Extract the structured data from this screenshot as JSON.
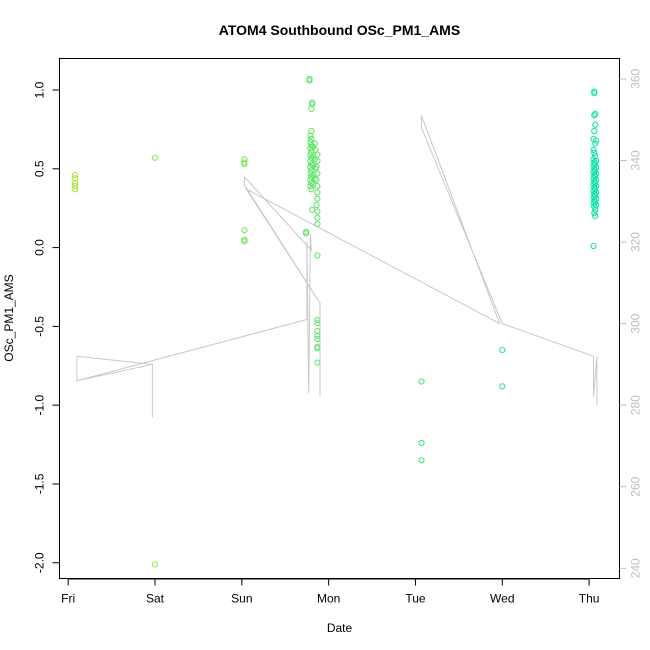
{
  "chart_data": {
    "type": "scatter",
    "title": "ATOM4 Southbound OSc_PM1_AMS",
    "xlabel": "Date",
    "ylabel": "OSc_PM1_AMS",
    "x_ticks": [
      "Fri",
      "Sat",
      "Sun",
      "Mon",
      "Tue",
      "Wed",
      "Thu"
    ],
    "xlim": [
      -0.1,
      6.35
    ],
    "ylim": [
      -2.1,
      1.2
    ],
    "y_ticks": [
      -2.0,
      -1.5,
      -1.0,
      -0.5,
      0.0,
      0.5,
      1.0
    ],
    "y2lim": [
      237.5,
      365
    ],
    "y2_ticks": [
      240,
      260,
      280,
      300,
      320,
      340,
      360
    ],
    "grid": false,
    "colors": {
      "points_start": "#a6e62c",
      "points_end": "#00e6a6",
      "line": "#c8c8c8",
      "frame": "#000000",
      "right_axis": "#bdbdbd"
    },
    "series": [
      {
        "type": "scatter",
        "axis": "left",
        "x_units": "days since Fri",
        "points": [
          [
            0.08,
            0.46
          ],
          [
            0.08,
            0.44
          ],
          [
            0.08,
            0.41
          ],
          [
            0.08,
            0.39
          ],
          [
            0.08,
            0.37
          ],
          [
            1.0,
            0.57
          ],
          [
            1.0,
            -2.01
          ],
          [
            2.03,
            0.56
          ],
          [
            2.03,
            0.54
          ],
          [
            2.03,
            0.53
          ],
          [
            2.03,
            0.11
          ],
          [
            2.03,
            0.05
          ],
          [
            2.03,
            0.04
          ],
          [
            2.74,
            0.1
          ],
          [
            2.74,
            0.09
          ],
          [
            2.78,
            1.07
          ],
          [
            2.78,
            1.06
          ],
          [
            2.81,
            0.92
          ],
          [
            2.81,
            0.91
          ],
          [
            2.8,
            0.88
          ],
          [
            2.8,
            0.74
          ],
          [
            2.79,
            0.71
          ],
          [
            2.8,
            0.69
          ],
          [
            2.79,
            0.67
          ],
          [
            2.8,
            0.65
          ],
          [
            2.79,
            0.63
          ],
          [
            2.8,
            0.61
          ],
          [
            2.79,
            0.59
          ],
          [
            2.8,
            0.57
          ],
          [
            2.79,
            0.55
          ],
          [
            2.8,
            0.53
          ],
          [
            2.79,
            0.51
          ],
          [
            2.8,
            0.49
          ],
          [
            2.79,
            0.47
          ],
          [
            2.8,
            0.45
          ],
          [
            2.79,
            0.43
          ],
          [
            2.8,
            0.41
          ],
          [
            2.79,
            0.39
          ],
          [
            2.8,
            0.37
          ],
          [
            2.82,
            0.64
          ],
          [
            2.82,
            0.58
          ],
          [
            2.82,
            0.52
          ],
          [
            2.82,
            0.46
          ],
          [
            2.82,
            0.4
          ],
          [
            2.81,
            0.24
          ],
          [
            2.84,
            0.66
          ],
          [
            2.85,
            0.62
          ],
          [
            2.84,
            0.56
          ],
          [
            2.85,
            0.5
          ],
          [
            2.84,
            0.44
          ],
          [
            2.87,
            0.59
          ],
          [
            2.87,
            0.55
          ],
          [
            2.86,
            0.51
          ],
          [
            2.87,
            0.47
          ],
          [
            2.86,
            0.43
          ],
          [
            2.87,
            0.39
          ],
          [
            2.87,
            0.35
          ],
          [
            2.87,
            0.31
          ],
          [
            2.86,
            0.27
          ],
          [
            2.87,
            0.23
          ],
          [
            2.87,
            0.19
          ],
          [
            2.87,
            0.15
          ],
          [
            2.87,
            -0.05
          ],
          [
            2.87,
            -0.46
          ],
          [
            2.87,
            -0.48
          ],
          [
            2.87,
            -0.53
          ],
          [
            2.87,
            -0.56
          ],
          [
            2.87,
            -0.58
          ],
          [
            2.87,
            -0.63
          ],
          [
            2.87,
            -0.64
          ],
          [
            2.87,
            -0.73
          ],
          [
            4.07,
            -0.85
          ],
          [
            4.07,
            -1.24
          ],
          [
            4.07,
            -1.35
          ],
          [
            5.0,
            -0.65
          ],
          [
            5.0,
            -0.88
          ],
          [
            6.06,
            0.99
          ],
          [
            6.06,
            0.98
          ],
          [
            6.07,
            0.85
          ],
          [
            6.06,
            0.84
          ],
          [
            6.07,
            0.78
          ],
          [
            6.06,
            0.74
          ],
          [
            6.05,
            0.69
          ],
          [
            6.08,
            0.68
          ],
          [
            6.07,
            0.66
          ],
          [
            6.05,
            0.62
          ],
          [
            6.06,
            0.6
          ],
          [
            6.07,
            0.58
          ],
          [
            6.05,
            0.56
          ],
          [
            6.08,
            0.55
          ],
          [
            6.06,
            0.54
          ],
          [
            6.07,
            0.53
          ],
          [
            6.05,
            0.52
          ],
          [
            6.08,
            0.51
          ],
          [
            6.06,
            0.5
          ],
          [
            6.07,
            0.49
          ],
          [
            6.05,
            0.48
          ],
          [
            6.08,
            0.47
          ],
          [
            6.06,
            0.46
          ],
          [
            6.07,
            0.45
          ],
          [
            6.05,
            0.44
          ],
          [
            6.08,
            0.43
          ],
          [
            6.06,
            0.42
          ],
          [
            6.07,
            0.41
          ],
          [
            6.05,
            0.4
          ],
          [
            6.08,
            0.39
          ],
          [
            6.06,
            0.38
          ],
          [
            6.07,
            0.37
          ],
          [
            6.05,
            0.36
          ],
          [
            6.08,
            0.35
          ],
          [
            6.06,
            0.34
          ],
          [
            6.07,
            0.33
          ],
          [
            6.05,
            0.32
          ],
          [
            6.08,
            0.31
          ],
          [
            6.06,
            0.3
          ],
          [
            6.07,
            0.29
          ],
          [
            6.05,
            0.28
          ],
          [
            6.08,
            0.27
          ],
          [
            6.06,
            0.26
          ],
          [
            6.07,
            0.24
          ],
          [
            6.06,
            0.22
          ],
          [
            6.07,
            0.2
          ],
          [
            6.05,
            0.01
          ]
        ]
      },
      {
        "type": "line",
        "axis": "right",
        "x_units": "days since Fri",
        "points": [
          [
            0.1,
            292
          ],
          [
            0.97,
            290
          ],
          [
            0.97,
            277
          ],
          [
            0.97,
            290
          ],
          [
            0.1,
            286
          ],
          [
            0.1,
            292
          ],
          [
            0.1,
            286
          ],
          [
            2.75,
            301
          ],
          [
            2.75,
            320
          ],
          [
            2.77,
            283
          ],
          [
            2.79,
            322
          ],
          [
            2.8,
            318
          ],
          [
            2.03,
            336
          ],
          [
            2.03,
            334
          ],
          [
            2.9,
            305
          ],
          [
            2.9,
            282
          ],
          [
            2.9,
            305
          ],
          [
            2.05,
            333
          ],
          [
            4.97,
            300
          ],
          [
            4.07,
            351
          ],
          [
            4.07,
            348
          ],
          [
            5.0,
            300
          ],
          [
            6.05,
            292
          ],
          [
            6.05,
            282
          ],
          [
            6.09,
            292
          ],
          [
            6.09,
            280
          ]
        ]
      }
    ]
  }
}
